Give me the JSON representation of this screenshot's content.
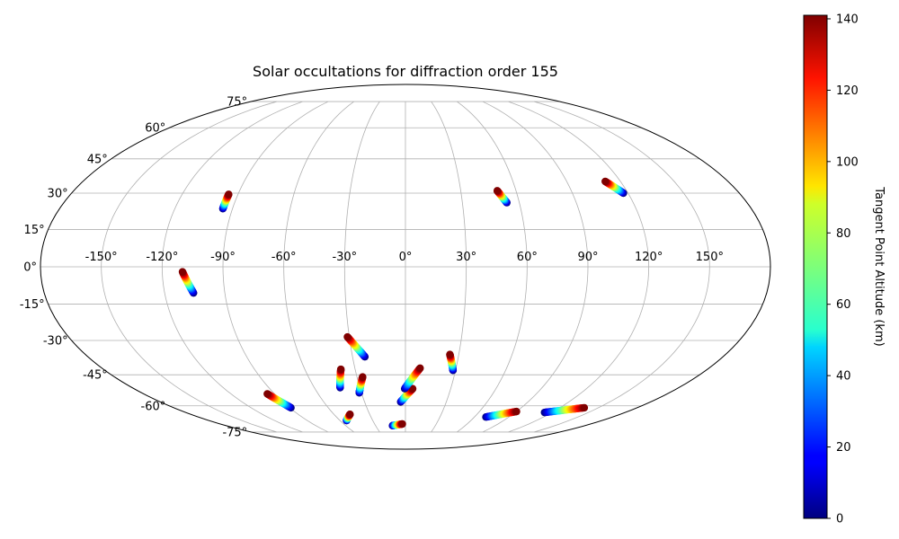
{
  "chart_data": {
    "type": "scatter",
    "projection": "Mollweide",
    "title": "Solar occultations for diffraction order 155",
    "xlabel": "",
    "ylabel": "",
    "grid": true,
    "longitude_ticks": [
      -150,
      -120,
      -90,
      -60,
      -30,
      0,
      30,
      60,
      90,
      120,
      150
    ],
    "longitude_tick_labels": [
      "-150°",
      "-120°",
      "-90°",
      "-60°",
      "-30°",
      "0°",
      "30°",
      "60°",
      "90°",
      "120°",
      "150°"
    ],
    "latitude_ticks": [
      -75,
      -60,
      -45,
      -30,
      -15,
      0,
      15,
      30,
      45,
      60,
      75
    ],
    "latitude_tick_labels": [
      "-75°",
      "-60°",
      "-45°",
      "-30°",
      "-15°",
      "0°",
      "15°",
      "30°",
      "45°",
      "60°",
      "75°"
    ],
    "colorbar": {
      "label": "Tangent Point Altitude (km)",
      "colormap": "jet",
      "range": [
        0,
        141
      ],
      "ticks": [
        0,
        20,
        40,
        60,
        80,
        100,
        120,
        140
      ],
      "tick_labels": [
        "0",
        "20",
        "40",
        "60",
        "80",
        "100",
        "120",
        "140"
      ]
    },
    "series": [
      {
        "bottom": [
          -95,
          23.5
        ],
        "top": [
          -95,
          29.5
        ]
      },
      {
        "bottom": [
          -105.6,
          -10.5
        ],
        "top": [
          -110,
          -2
        ]
      },
      {
        "bottom": [
          -89,
          -61
        ],
        "top": [
          -95,
          -54
        ]
      },
      {
        "bottom": [
          53.4,
          26
        ],
        "top": [
          49.8,
          31
        ]
      },
      {
        "bottom": [
          117.5,
          30
        ],
        "top": [
          111.5,
          35
        ]
      },
      {
        "bottom": [
          -23,
          -37
        ],
        "top": [
          -31,
          -28.5
        ]
      },
      {
        "bottom": [
          -43,
          -51
        ],
        "top": [
          -38.5,
          -42.5
        ]
      },
      {
        "bottom": [
          -31.5,
          -53.5
        ],
        "top": [
          -26.5,
          -46
        ]
      },
      {
        "bottom": [
          -54,
          -68
        ],
        "top": [
          -46.5,
          -64.5
        ]
      },
      {
        "bottom": [
          -13,
          -71
        ],
        "top": [
          -3,
          -70
        ]
      },
      {
        "bottom": [
          -3.5,
          -58
        ],
        "top": [
          4.8,
          -51.5
        ]
      },
      {
        "bottom": [
          -0.5,
          -51.5
        ],
        "top": [
          8.7,
          -42
        ]
      },
      {
        "bottom": [
          28.5,
          -43
        ],
        "top": [
          25,
          -36
        ]
      },
      {
        "bottom": [
          70,
          -66
        ],
        "top": [
          90,
          -63
        ]
      },
      {
        "bottom": [
          114,
          -63.5
        ],
        "top": [
          139,
          -61
        ]
      }
    ]
  }
}
